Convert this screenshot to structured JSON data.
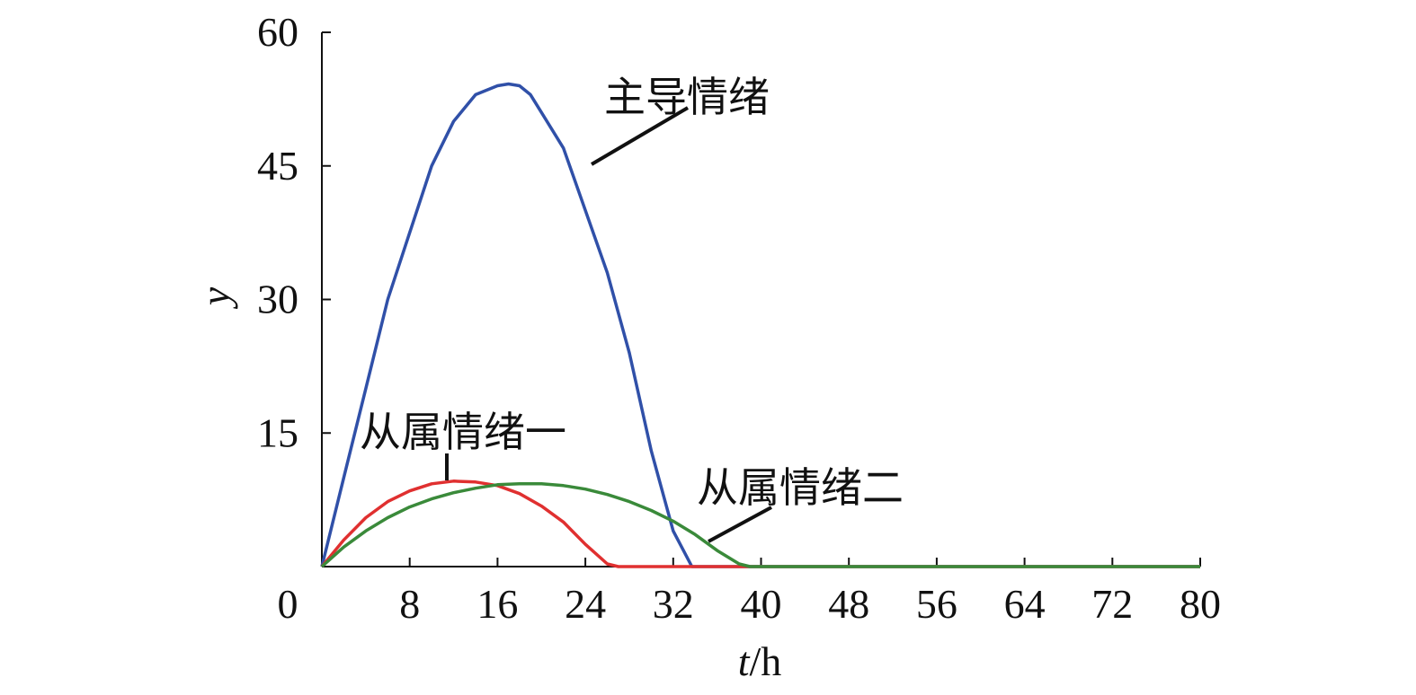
{
  "chart_data": {
    "type": "line",
    "xlabel_italic": "t",
    "xlabel_unit": "/h",
    "ylabel": "y",
    "xlim": [
      0,
      80
    ],
    "ylim": [
      0,
      60
    ],
    "xticks": [
      0,
      8,
      16,
      24,
      32,
      40,
      48,
      56,
      64,
      72,
      80
    ],
    "yticks": [
      15,
      30,
      45,
      60
    ],
    "grid": false,
    "series": [
      {
        "name": "主导情绪",
        "color": "#3050a8",
        "x": [
          0,
          2,
          4,
          6,
          8,
          10,
          12,
          14,
          16,
          17,
          18,
          19,
          20,
          22,
          24,
          26,
          28,
          30,
          32,
          33.7,
          80
        ],
        "y": [
          0,
          10,
          20,
          30,
          37.5,
          45,
          50,
          53,
          54,
          54.2,
          54,
          53,
          51,
          47,
          40,
          33,
          24,
          13,
          4,
          0,
          0
        ]
      },
      {
        "name": "从属情绪一",
        "color": "#e03030",
        "x": [
          0,
          2,
          4,
          6,
          8,
          10,
          12,
          14,
          16,
          18,
          20,
          22,
          24,
          26,
          27,
          80
        ],
        "y": [
          0,
          3,
          5.5,
          7.3,
          8.5,
          9.3,
          9.6,
          9.5,
          9.1,
          8.2,
          6.8,
          5,
          2.5,
          0.3,
          0,
          0
        ]
      },
      {
        "name": "从属情绪二",
        "color": "#3a8a3a",
        "x": [
          0,
          2,
          4,
          6,
          8,
          10,
          12,
          14,
          16,
          18,
          20,
          22,
          24,
          26,
          28,
          30,
          32,
          34,
          36,
          38,
          39,
          80
        ],
        "y": [
          0,
          2.2,
          4,
          5.5,
          6.7,
          7.6,
          8.3,
          8.8,
          9.2,
          9.3,
          9.3,
          9.1,
          8.7,
          8.1,
          7.3,
          6.3,
          5.1,
          3.6,
          1.8,
          0.3,
          0,
          0
        ]
      }
    ],
    "annotations": [
      {
        "text": "主导情绪",
        "series": 0
      },
      {
        "text": "从属情绪一",
        "series": 1
      },
      {
        "text": "从属情绪二",
        "series": 2
      }
    ]
  }
}
